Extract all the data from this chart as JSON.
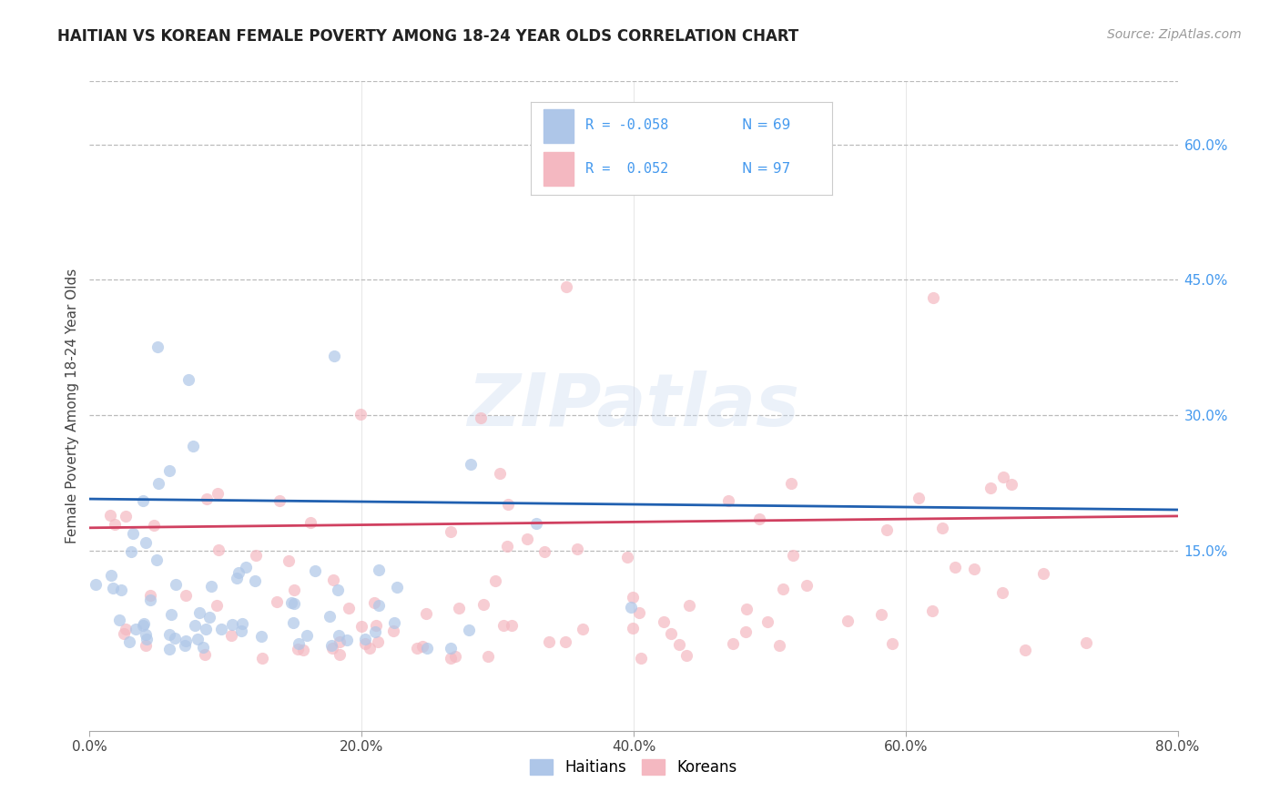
{
  "title": "HAITIAN VS KOREAN FEMALE POVERTY AMONG 18-24 YEAR OLDS CORRELATION CHART",
  "source": "Source: ZipAtlas.com",
  "xlabel_ticks": [
    "0.0%",
    "20.0%",
    "40.0%",
    "60.0%",
    "80.0%"
  ],
  "xlabel_vals": [
    0.0,
    0.2,
    0.4,
    0.6,
    0.8
  ],
  "ylabel_ticks_right": [
    "15.0%",
    "30.0%",
    "45.0%",
    "60.0%"
  ],
  "ylabel_vals_right": [
    0.15,
    0.3,
    0.45,
    0.6
  ],
  "ylabel_label": "Female Poverty Among 18-24 Year Olds",
  "haitian_R": -0.058,
  "haitian_N": 69,
  "korean_R": 0.052,
  "korean_N": 97,
  "haitian_color": "#aec6e8",
  "haitian_line_color": "#2060b0",
  "korean_color": "#f4b8c1",
  "korean_line_color": "#d04060",
  "scatter_alpha": 0.7,
  "scatter_size": 90,
  "xlim": [
    0.0,
    0.8
  ],
  "ylim": [
    -0.05,
    0.67
  ],
  "watermark": "ZIPatlas",
  "legend_haitian": "Haitians",
  "legend_korean": "Koreans",
  "grid_color": "#bbbbbb",
  "grid_style": "--",
  "background_color": "#ffffff",
  "haitian_trend_start_y": 0.207,
  "haitian_trend_end_y": 0.195,
  "korean_trend_start_y": 0.175,
  "korean_trend_end_y": 0.188
}
